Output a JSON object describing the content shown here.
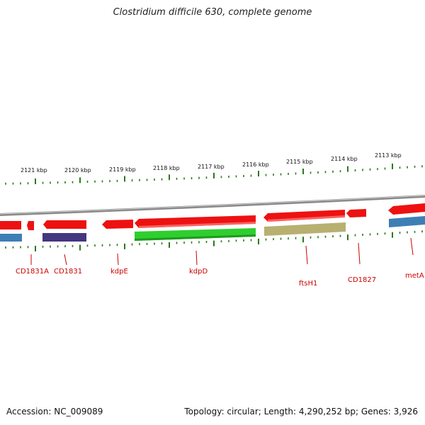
{
  "title": "Clostridium difficile 630, complete genome",
  "footer": {
    "accession": "Accession: NC_009089",
    "summary": "Topology: circular; Length: 4,290,252 bp; Genes: 3,926"
  },
  "colors": {
    "backbone": "#8a8a8a",
    "forward_cds": "#ee1111",
    "tick": "#2a7a1a",
    "label": "#cc0000",
    "blue_track": "#3d7fb5",
    "purple_track": "#44367f",
    "green_track": "#2fce2f",
    "olive_track": "#b7b070"
  },
  "scale_labels": [
    "2121 kbp",
    "2120 kbp",
    "2119 kbp",
    "2118 kbp",
    "2117 kbp",
    "2116 kbp",
    "2115 kbp",
    "2114 kbp",
    "2113 kbp"
  ],
  "gene_labels": [
    "CD1831A",
    "CD1831",
    "kdpE",
    "kdpD",
    "ftsH1",
    "CD1827",
    "metA"
  ]
}
